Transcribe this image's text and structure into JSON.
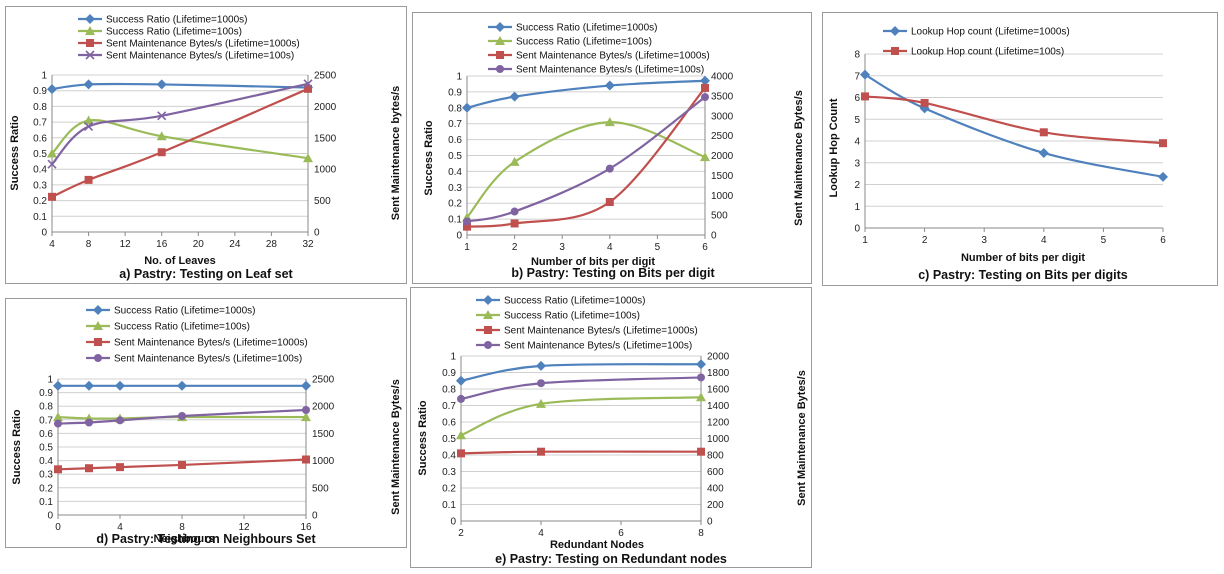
{
  "chart_data": [
    {
      "type": "line",
      "title": "a) Pastry: Testing on Leaf set",
      "xlabel": "No. of Leaves",
      "ylabel": "Success Ratio",
      "y2label": "Sent Maintenance bytes/s",
      "xlim": [
        4,
        32
      ],
      "xticks": [
        4,
        8,
        12,
        16,
        20,
        24,
        28,
        32
      ],
      "ylim": [
        0,
        1
      ],
      "yticks": [
        "0",
        "0.1",
        "0.2",
        "0.3",
        "0.4",
        "0.5",
        "0.6",
        "0.7",
        "0.8",
        "0.9",
        "1"
      ],
      "y2lim": [
        0,
        2500
      ],
      "y2ticks": [
        "0",
        "500",
        "1000",
        "1500",
        "2000",
        "2500"
      ],
      "series": [
        {
          "name": "Success Ratio (Lifetime=1000s)",
          "axis": "left",
          "color": "#4f81bd",
          "marker": "diamond",
          "x": [
            4,
            8,
            16,
            32
          ],
          "y": [
            0.91,
            0.94,
            0.94,
            0.92
          ]
        },
        {
          "name": "Success Ratio (Lifetime=100s)",
          "axis": "left",
          "color": "#9bbb59",
          "marker": "triangle",
          "x": [
            4,
            8,
            16,
            32
          ],
          "y": [
            0.5,
            0.71,
            0.61,
            0.47
          ]
        },
        {
          "name": "Sent Maintenance Bytes/s (Lifetime=1000s)",
          "axis": "right",
          "color": "#c0504d",
          "marker": "square",
          "x": [
            4,
            8,
            16,
            32
          ],
          "y": [
            560,
            830,
            1270,
            2280
          ]
        },
        {
          "name": "Sent Maintenance Bytes/s (Lifetime=100s)",
          "axis": "right",
          "color": "#8064a2",
          "marker": "x",
          "x": [
            4,
            8,
            16,
            32
          ],
          "y": [
            1080,
            1680,
            1850,
            2360
          ]
        }
      ]
    },
    {
      "type": "line",
      "title": "b) Pastry: Testing on Bits per digit",
      "xlabel": "Number of bits per digit",
      "ylabel": "Success Ratio",
      "y2label": "Sent Maintenance Bytes/s",
      "xlim": [
        1,
        6
      ],
      "xticks": [
        1,
        2,
        3,
        4,
        5,
        6
      ],
      "ylim": [
        0,
        1
      ],
      "yticks": [
        "0",
        "0.1",
        "0.2",
        "0.3",
        "0.4",
        "0.5",
        "0.6",
        "0.7",
        "0.8",
        "0.9",
        "1"
      ],
      "y2lim": [
        0,
        4000
      ],
      "y2ticks": [
        "0",
        "500",
        "1000",
        "1500",
        "2000",
        "2500",
        "3000",
        "3500",
        "4000"
      ],
      "series": [
        {
          "name": "Success Ratio (Lifetime=1000s)",
          "axis": "left",
          "color": "#4f81bd",
          "marker": "diamond",
          "x": [
            1,
            2,
            4,
            6
          ],
          "y": [
            0.8,
            0.87,
            0.94,
            0.97
          ]
        },
        {
          "name": "Success Ratio (Lifetime=100s)",
          "axis": "left",
          "color": "#9bbb59",
          "marker": "triangle",
          "x": [
            1,
            2,
            4,
            6
          ],
          "y": [
            0.11,
            0.46,
            0.71,
            0.49
          ]
        },
        {
          "name": "Sent Maintenance Bytes/s (Lifetime=1000s)",
          "axis": "right",
          "color": "#c0504d",
          "marker": "square",
          "x": [
            1,
            2,
            4,
            6
          ],
          "y": [
            210,
            290,
            830,
            3700
          ]
        },
        {
          "name": "Sent Maintenance Bytes/s (Lifetime=100s)",
          "axis": "right",
          "color": "#8064a2",
          "marker": "circle",
          "x": [
            1,
            2,
            4,
            6
          ],
          "y": [
            340,
            590,
            1670,
            3470
          ]
        }
      ]
    },
    {
      "type": "line",
      "title": "c) Pastry: Testing on Bits per digits",
      "xlabel": "Number of bits per digit",
      "ylabel": "Lookup Hop Count",
      "y2label": "",
      "xlim": [
        1,
        6
      ],
      "xticks": [
        1,
        2,
        3,
        4,
        5,
        6
      ],
      "ylim": [
        0,
        8
      ],
      "yticks": [
        "0",
        "1",
        "2",
        "3",
        "4",
        "5",
        "6",
        "7",
        "8"
      ],
      "series": [
        {
          "name": "Lookup Hop count (Lifetime=1000s)",
          "axis": "left",
          "color": "#4f81bd",
          "marker": "diamond",
          "x": [
            1,
            2,
            4,
            6
          ],
          "y": [
            7.05,
            5.5,
            3.45,
            2.35
          ]
        },
        {
          "name": "Lookup Hop count (Lifetime=100s)",
          "axis": "left",
          "color": "#c0504d",
          "marker": "square",
          "x": [
            1,
            2,
            4,
            6
          ],
          "y": [
            6.05,
            5.75,
            4.4,
            3.9
          ]
        }
      ]
    },
    {
      "type": "line",
      "title": "d) Pastry: Testing on Neighbours Set",
      "xlabel": "Neighbours",
      "ylabel": "Success Ratio",
      "y2label": "Sent Maintenance Bytes/s",
      "xlim": [
        0,
        16
      ],
      "xticks": [
        0,
        4,
        8,
        12,
        16
      ],
      "ylim": [
        0,
        1
      ],
      "yticks": [
        "0",
        "0.1",
        "0.2",
        "0.3",
        "0.4",
        "0.5",
        "0.6",
        "0.7",
        "0.8",
        "0.9",
        "1"
      ],
      "y2lim": [
        0,
        2500
      ],
      "y2ticks": [
        "0",
        "500",
        "1000",
        "1500",
        "2000",
        "2500"
      ],
      "series": [
        {
          "name": "Success Ratio (Lifetime=1000s)",
          "axis": "left",
          "color": "#4f81bd",
          "marker": "diamond",
          "x": [
            0,
            2,
            4,
            8,
            16
          ],
          "y": [
            0.95,
            0.95,
            0.95,
            0.95,
            0.95
          ]
        },
        {
          "name": "Success Ratio (Lifetime=100s)",
          "axis": "left",
          "color": "#9bbb59",
          "marker": "triangle",
          "x": [
            0,
            2,
            4,
            8,
            16
          ],
          "y": [
            0.72,
            0.71,
            0.71,
            0.72,
            0.72
          ]
        },
        {
          "name": "Sent Maintenance  Bytes/s (Lifetime=1000s)",
          "axis": "right",
          "color": "#c0504d",
          "marker": "square",
          "x": [
            0,
            2,
            4,
            8,
            16
          ],
          "y": [
            840,
            860,
            880,
            920,
            1020
          ]
        },
        {
          "name": "Sent Maintenance  Bytes/s (Lifetime=100s)",
          "axis": "right",
          "color": "#8064a2",
          "marker": "circle",
          "x": [
            0,
            2,
            4,
            8,
            16
          ],
          "y": [
            1680,
            1700,
            1740,
            1820,
            1930
          ]
        }
      ]
    },
    {
      "type": "line",
      "title": "e) Pastry: Testing on Redundant nodes",
      "xlabel": "Redundant Nodes",
      "ylabel": "Success Ratio",
      "y2label": "Sent Maintenance Bytes/s",
      "xlim": [
        2,
        8
      ],
      "xticks": [
        2,
        4,
        6,
        8
      ],
      "ylim": [
        0,
        1
      ],
      "yticks": [
        "0",
        "0.1",
        "0.2",
        "0.3",
        "0.4",
        "0.5",
        "0.6",
        "0.7",
        "0.8",
        "0.9",
        "1"
      ],
      "y2lim": [
        0,
        2000
      ],
      "y2ticks": [
        "0",
        "200",
        "400",
        "600",
        "800",
        "1000",
        "1200",
        "1400",
        "1600",
        "1800",
        "2000"
      ],
      "series": [
        {
          "name": "Success Ratio (Lifetime=1000s)",
          "axis": "left",
          "color": "#4f81bd",
          "marker": "diamond",
          "x": [
            2,
            4,
            8
          ],
          "y": [
            0.85,
            0.94,
            0.95
          ]
        },
        {
          "name": "Success Ratio (Lifetime=100s)",
          "axis": "left",
          "color": "#9bbb59",
          "marker": "triangle",
          "x": [
            2,
            4,
            8
          ],
          "y": [
            0.52,
            0.71,
            0.75
          ]
        },
        {
          "name": "Sent Maintenance  Bytes/s (Lifetime=1000s)",
          "axis": "right",
          "color": "#c0504d",
          "marker": "square",
          "x": [
            2,
            4,
            8
          ],
          "y": [
            820,
            840,
            840
          ]
        },
        {
          "name": "Sent Maintenance  Bytes/s (Lifetime=100s)",
          "axis": "right",
          "color": "#8064a2",
          "marker": "circle",
          "x": [
            2,
            4,
            8
          ],
          "y": [
            1480,
            1670,
            1740
          ]
        }
      ]
    }
  ]
}
